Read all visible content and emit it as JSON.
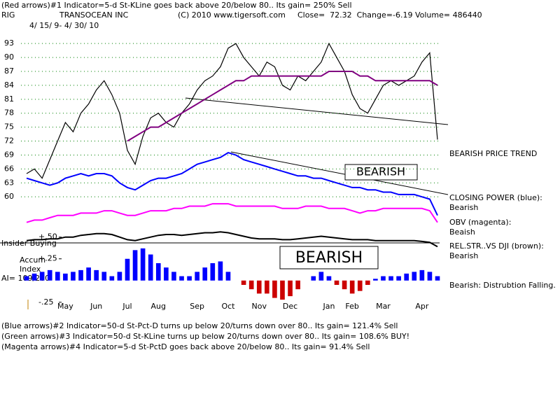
{
  "header": {
    "line1": "(Red arrows)#1 Indicator=5-d St-KLine goes back above 20/below 80.. Its gain= 250% Sell",
    "symbol": "RIG",
    "company": "TRANSOCEAN INC",
    "copyright": "(C) 2010 www.tigersoft.com",
    "quote": "Close=  72.32  Change=-6.19 Volume= 486440",
    "range": "4/ 15/ 9- 4/ 30/ 10"
  },
  "notes": {
    "trend": "BEARISH PRICE TREND",
    "cp": "CLOSING POWER (blue):",
    "cp_state": "Bearish",
    "obv": "OBV (magenta):",
    "obv_state": "Beaish",
    "rs": "REL.STR..VS DJI (brown):",
    "rs_state": "Bearish",
    "ai_state": "Bearish: Distrubtion Falling.",
    "box1": "BEARISH",
    "box2": "BEARISH",
    "insider": "Insider Buying",
    "accum1": "Accum",
    "accum2": "Index",
    "ai": "AI= 109/200"
  },
  "footer": [
    "(Blue arrows)#2 Indicator=50-d St-Pct-D turns up below 20/turns down over 80.. Its gain= 121.4% Sell",
    "(Green arrows)#3 Indicator=50-d St-KLine turns up below 20/turns down over 80.. Its gain= 108.6% BUY!",
    "(Magenta arrows)#4 Indicator=5-d St-PctD goes back above 20/below 80.. Its gain= 91.4% Sell"
  ],
  "chart_data": [
    {
      "type": "line",
      "categories": [
        null,
        null,
        null,
        null,
        null,
        "May",
        null,
        null,
        null,
        "Jun",
        null,
        null,
        null,
        "Jul",
        null,
        null,
        null,
        "Aug",
        null,
        null,
        null,
        null,
        "Sep",
        null,
        null,
        null,
        "Oct",
        null,
        null,
        null,
        "Nov",
        null,
        null,
        null,
        "Dec",
        null,
        null,
        null,
        null,
        "Jan",
        null,
        null,
        "Feb",
        null,
        null,
        null,
        "Mar",
        null,
        null,
        null,
        null,
        "Apr",
        null,
        null
      ],
      "ylim": [
        54,
        98
      ],
      "yticks": [
        60,
        63,
        66,
        69,
        72,
        75,
        78,
        81,
        84,
        87,
        90,
        93
      ],
      "grid": true,
      "grid_color": "#008000",
      "series": [
        {
          "name": "Price",
          "color": "#000000",
          "values": [
            65,
            66,
            64,
            68,
            72,
            76,
            74,
            78,
            80,
            83,
            85,
            82,
            78,
            70,
            67,
            73,
            77,
            78,
            76,
            75,
            78,
            80,
            83,
            85,
            86,
            88,
            92,
            93,
            90,
            88,
            86,
            89,
            88,
            84,
            83,
            86,
            85,
            87,
            89,
            93,
            90,
            87,
            82,
            79,
            78,
            81,
            84,
            85,
            84,
            85,
            86,
            89,
            91,
            72.32
          ]
        },
        {
          "name": "MA",
          "color": "#800080",
          "values": [
            null,
            null,
            null,
            null,
            null,
            null,
            null,
            null,
            null,
            null,
            null,
            null,
            null,
            72,
            73,
            74,
            75,
            75,
            76,
            77,
            78,
            79,
            80,
            81,
            82,
            83,
            84,
            85,
            85,
            86,
            86,
            86,
            86,
            86,
            86,
            86,
            86,
            86,
            86,
            87,
            87,
            87,
            87,
            86,
            86,
            85,
            85,
            85,
            85,
            85,
            85,
            85,
            85,
            84
          ]
        },
        {
          "name": "Closing Power",
          "color": "#0000ff",
          "values": [
            64,
            63.5,
            63,
            62.5,
            63,
            64,
            64.5,
            65,
            64.5,
            65,
            65,
            64.5,
            63,
            62,
            61.5,
            62.5,
            63.5,
            64,
            64,
            64.5,
            65,
            66,
            67,
            67.5,
            68,
            68.5,
            69.5,
            69,
            68,
            67.5,
            67,
            66.5,
            66,
            65.5,
            65,
            64.5,
            64.5,
            64,
            64,
            63.5,
            63,
            62.5,
            62,
            62,
            61.5,
            61.5,
            61,
            61,
            60.5,
            60.5,
            60.5,
            60,
            59.5,
            56
          ]
        },
        {
          "name": "OBV",
          "color": "#ff00ff",
          "values": [
            54.5,
            55,
            55,
            55.5,
            56,
            56,
            56,
            56.5,
            56.5,
            56.5,
            57,
            57,
            56.5,
            56,
            56,
            56.5,
            57,
            57,
            57,
            57.5,
            57.5,
            58,
            58,
            58,
            58.5,
            58.5,
            58.5,
            58,
            58,
            58,
            58,
            58,
            58,
            57.5,
            57.5,
            57.5,
            58,
            58,
            58,
            57.5,
            57.5,
            57.5,
            57,
            56.5,
            57,
            57,
            57.5,
            57.5,
            57.5,
            57.5,
            57.5,
            57.5,
            57,
            54.5
          ]
        }
      ]
    },
    {
      "type": "bar",
      "ylim": [
        -0.3,
        0.53
      ],
      "yticks": [
        {
          "value": 0.5,
          "label": "+.50"
        },
        {
          "value": 0.25,
          "label": "+.25"
        },
        {
          "value": -0.25,
          "label": "-.25"
        }
      ],
      "series": [
        {
          "name": "Accum Index",
          "color": "#0000ff",
          "negative_color": "#cc0000",
          "values": [
            0.05,
            0.08,
            0.1,
            0.12,
            0.1,
            0.08,
            0.1,
            0.12,
            0.15,
            0.12,
            0.1,
            0.05,
            0.1,
            0.25,
            0.35,
            0.37,
            0.3,
            0.2,
            0.15,
            0.1,
            0.05,
            0.05,
            0.1,
            0.15,
            0.2,
            0.22,
            0.1,
            0,
            -0.05,
            -0.1,
            -0.15,
            -0.15,
            -0.2,
            -0.22,
            -0.18,
            -0.1,
            0,
            0.05,
            0.1,
            0.05,
            -0.05,
            -0.1,
            -0.15,
            -0.12,
            -0.05,
            0.02,
            0.05,
            0.05,
            0.05,
            0.08,
            0.1,
            0.12,
            0.1,
            0.05
          ]
        },
        {
          "name": "Rel Str",
          "type": "line",
          "color": "#000000",
          "values": [
            0.46,
            0.47,
            0.47,
            0.48,
            0.48,
            0.5,
            0.5,
            0.52,
            0.53,
            0.54,
            0.54,
            0.53,
            0.5,
            0.47,
            0.46,
            0.48,
            0.5,
            0.52,
            0.53,
            0.53,
            0.52,
            0.53,
            0.54,
            0.55,
            0.55,
            0.56,
            0.55,
            0.53,
            0.51,
            0.49,
            0.48,
            0.48,
            0.48,
            0.47,
            0.47,
            0.48,
            0.49,
            0.5,
            0.51,
            0.5,
            0.49,
            0.48,
            0.47,
            0.47,
            0.47,
            0.46,
            0.46,
            0.46,
            0.46,
            0.46,
            0.46,
            0.45,
            0.44,
            0.39
          ]
        }
      ]
    }
  ]
}
